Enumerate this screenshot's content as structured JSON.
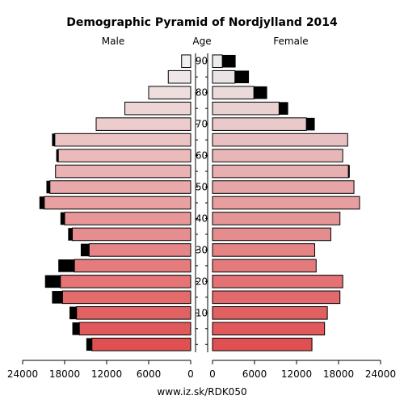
{
  "chart_data": {
    "type": "bar",
    "orientation": "horizontal-population-pyramid",
    "title": "Demographic Pyramid of Nordjylland 2014",
    "left_header": "Male",
    "center_header": "Age",
    "right_header": "Female",
    "footer": "www.iz.sk/RDK050",
    "age_groups": [
      "0-4",
      "5-9",
      "10-14",
      "15-19",
      "20-24",
      "25-29",
      "30-34",
      "35-39",
      "40-44",
      "45-49",
      "50-54",
      "55-59",
      "60-64",
      "65-69",
      "70-74",
      "75-79",
      "80-84",
      "85-89",
      "90+"
    ],
    "age_tick_labels": [
      "10",
      "20",
      "30",
      "40",
      "50",
      "60",
      "70",
      "80",
      "90"
    ],
    "age_tick_groups": [
      2,
      4,
      6,
      8,
      10,
      12,
      14,
      16,
      18
    ],
    "x_ticks": [
      24000,
      18000,
      12000,
      6000,
      0
    ],
    "x_tick_labels": [
      "24000",
      "18000",
      "12000",
      "6000",
      "0",
      "0",
      "6000",
      "12000",
      "18000",
      "24000"
    ],
    "xlim": [
      0,
      24000
    ],
    "series": [
      {
        "name": "Male",
        "values": [
          14100,
          15900,
          16300,
          18300,
          18600,
          16600,
          14500,
          16900,
          18000,
          20900,
          20100,
          19300,
          18900,
          19400,
          13500,
          9400,
          6000,
          3200,
          1300
        ],
        "extra": [
          800,
          1000,
          1000,
          1500,
          2200,
          2300,
          1200,
          600,
          600,
          700,
          500,
          0,
          300,
          400,
          0,
          0,
          0,
          0,
          0
        ]
      },
      {
        "name": "Female",
        "values": [
          14200,
          16000,
          16400,
          18200,
          18600,
          14800,
          14600,
          16900,
          18200,
          21000,
          20200,
          19400,
          18600,
          19300,
          13400,
          9500,
          5900,
          3200,
          1400
        ],
        "extra": [
          0,
          0,
          0,
          0,
          0,
          0,
          0,
          0,
          0,
          0,
          0,
          200,
          0,
          0,
          1200,
          1300,
          1900,
          2000,
          1900
        ]
      }
    ],
    "grid": false,
    "legend": "none"
  }
}
